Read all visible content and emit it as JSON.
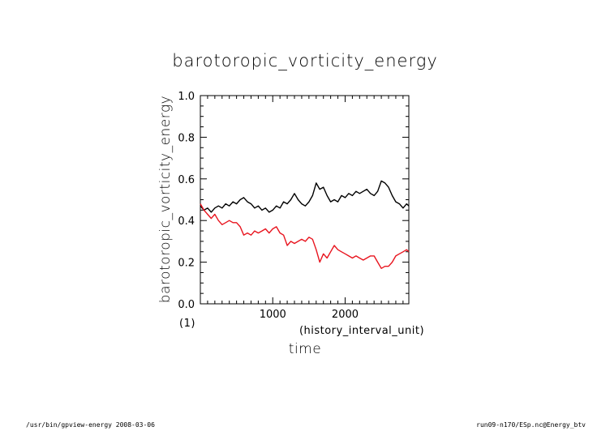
{
  "chart_data": {
    "type": "line",
    "title": "barotoropic_vorticity_energy",
    "xlabel": "time",
    "x_unit": "(history_interval_unit)",
    "ylabel": "barotoropic_vorticity_energy",
    "y_unit": "(1)",
    "xlim": [
      0,
      2880
    ],
    "ylim": [
      0.0,
      1.0
    ],
    "x_ticks": [
      1000,
      2000
    ],
    "y_ticks": [
      "0.0",
      "0.2",
      "0.4",
      "0.6",
      "0.8",
      "1.0"
    ],
    "grid": false,
    "x": [
      0,
      50,
      100,
      150,
      200,
      250,
      300,
      350,
      400,
      450,
      500,
      550,
      600,
      650,
      700,
      750,
      800,
      850,
      900,
      950,
      1000,
      1050,
      1100,
      1150,
      1200,
      1250,
      1300,
      1350,
      1400,
      1450,
      1500,
      1550,
      1600,
      1650,
      1700,
      1750,
      1800,
      1850,
      1900,
      1950,
      2000,
      2050,
      2100,
      2150,
      2200,
      2250,
      2300,
      2350,
      2400,
      2450,
      2500,
      2550,
      2600,
      2650,
      2700,
      2750,
      2800,
      2850,
      2880
    ],
    "series": [
      {
        "color": "#000000",
        "values": [
          0.47,
          0.45,
          0.46,
          0.44,
          0.46,
          0.47,
          0.46,
          0.48,
          0.47,
          0.49,
          0.48,
          0.5,
          0.51,
          0.49,
          0.48,
          0.46,
          0.47,
          0.45,
          0.46,
          0.44,
          0.45,
          0.47,
          0.46,
          0.49,
          0.48,
          0.5,
          0.53,
          0.5,
          0.48,
          0.47,
          0.49,
          0.52,
          0.58,
          0.55,
          0.56,
          0.52,
          0.49,
          0.5,
          0.49,
          0.52,
          0.51,
          0.53,
          0.52,
          0.54,
          0.53,
          0.54,
          0.55,
          0.53,
          0.52,
          0.54,
          0.59,
          0.58,
          0.56,
          0.52,
          0.49,
          0.48,
          0.46,
          0.48,
          0.47
        ]
      },
      {
        "color": "#e8141e",
        "values": [
          0.48,
          0.45,
          0.43,
          0.41,
          0.43,
          0.4,
          0.38,
          0.39,
          0.4,
          0.39,
          0.39,
          0.37,
          0.33,
          0.34,
          0.33,
          0.35,
          0.34,
          0.35,
          0.36,
          0.34,
          0.36,
          0.37,
          0.34,
          0.33,
          0.28,
          0.3,
          0.29,
          0.3,
          0.31,
          0.3,
          0.32,
          0.31,
          0.26,
          0.2,
          0.24,
          0.22,
          0.25,
          0.28,
          0.26,
          0.25,
          0.24,
          0.23,
          0.22,
          0.23,
          0.22,
          0.21,
          0.22,
          0.23,
          0.23,
          0.2,
          0.17,
          0.18,
          0.18,
          0.2,
          0.23,
          0.24,
          0.25,
          0.26,
          0.25
        ]
      }
    ]
  },
  "footer": {
    "left": "/usr/bin/gpview-energy  2008-03-06",
    "right": "run09-n170/ESp.nc@Energy_btv"
  }
}
